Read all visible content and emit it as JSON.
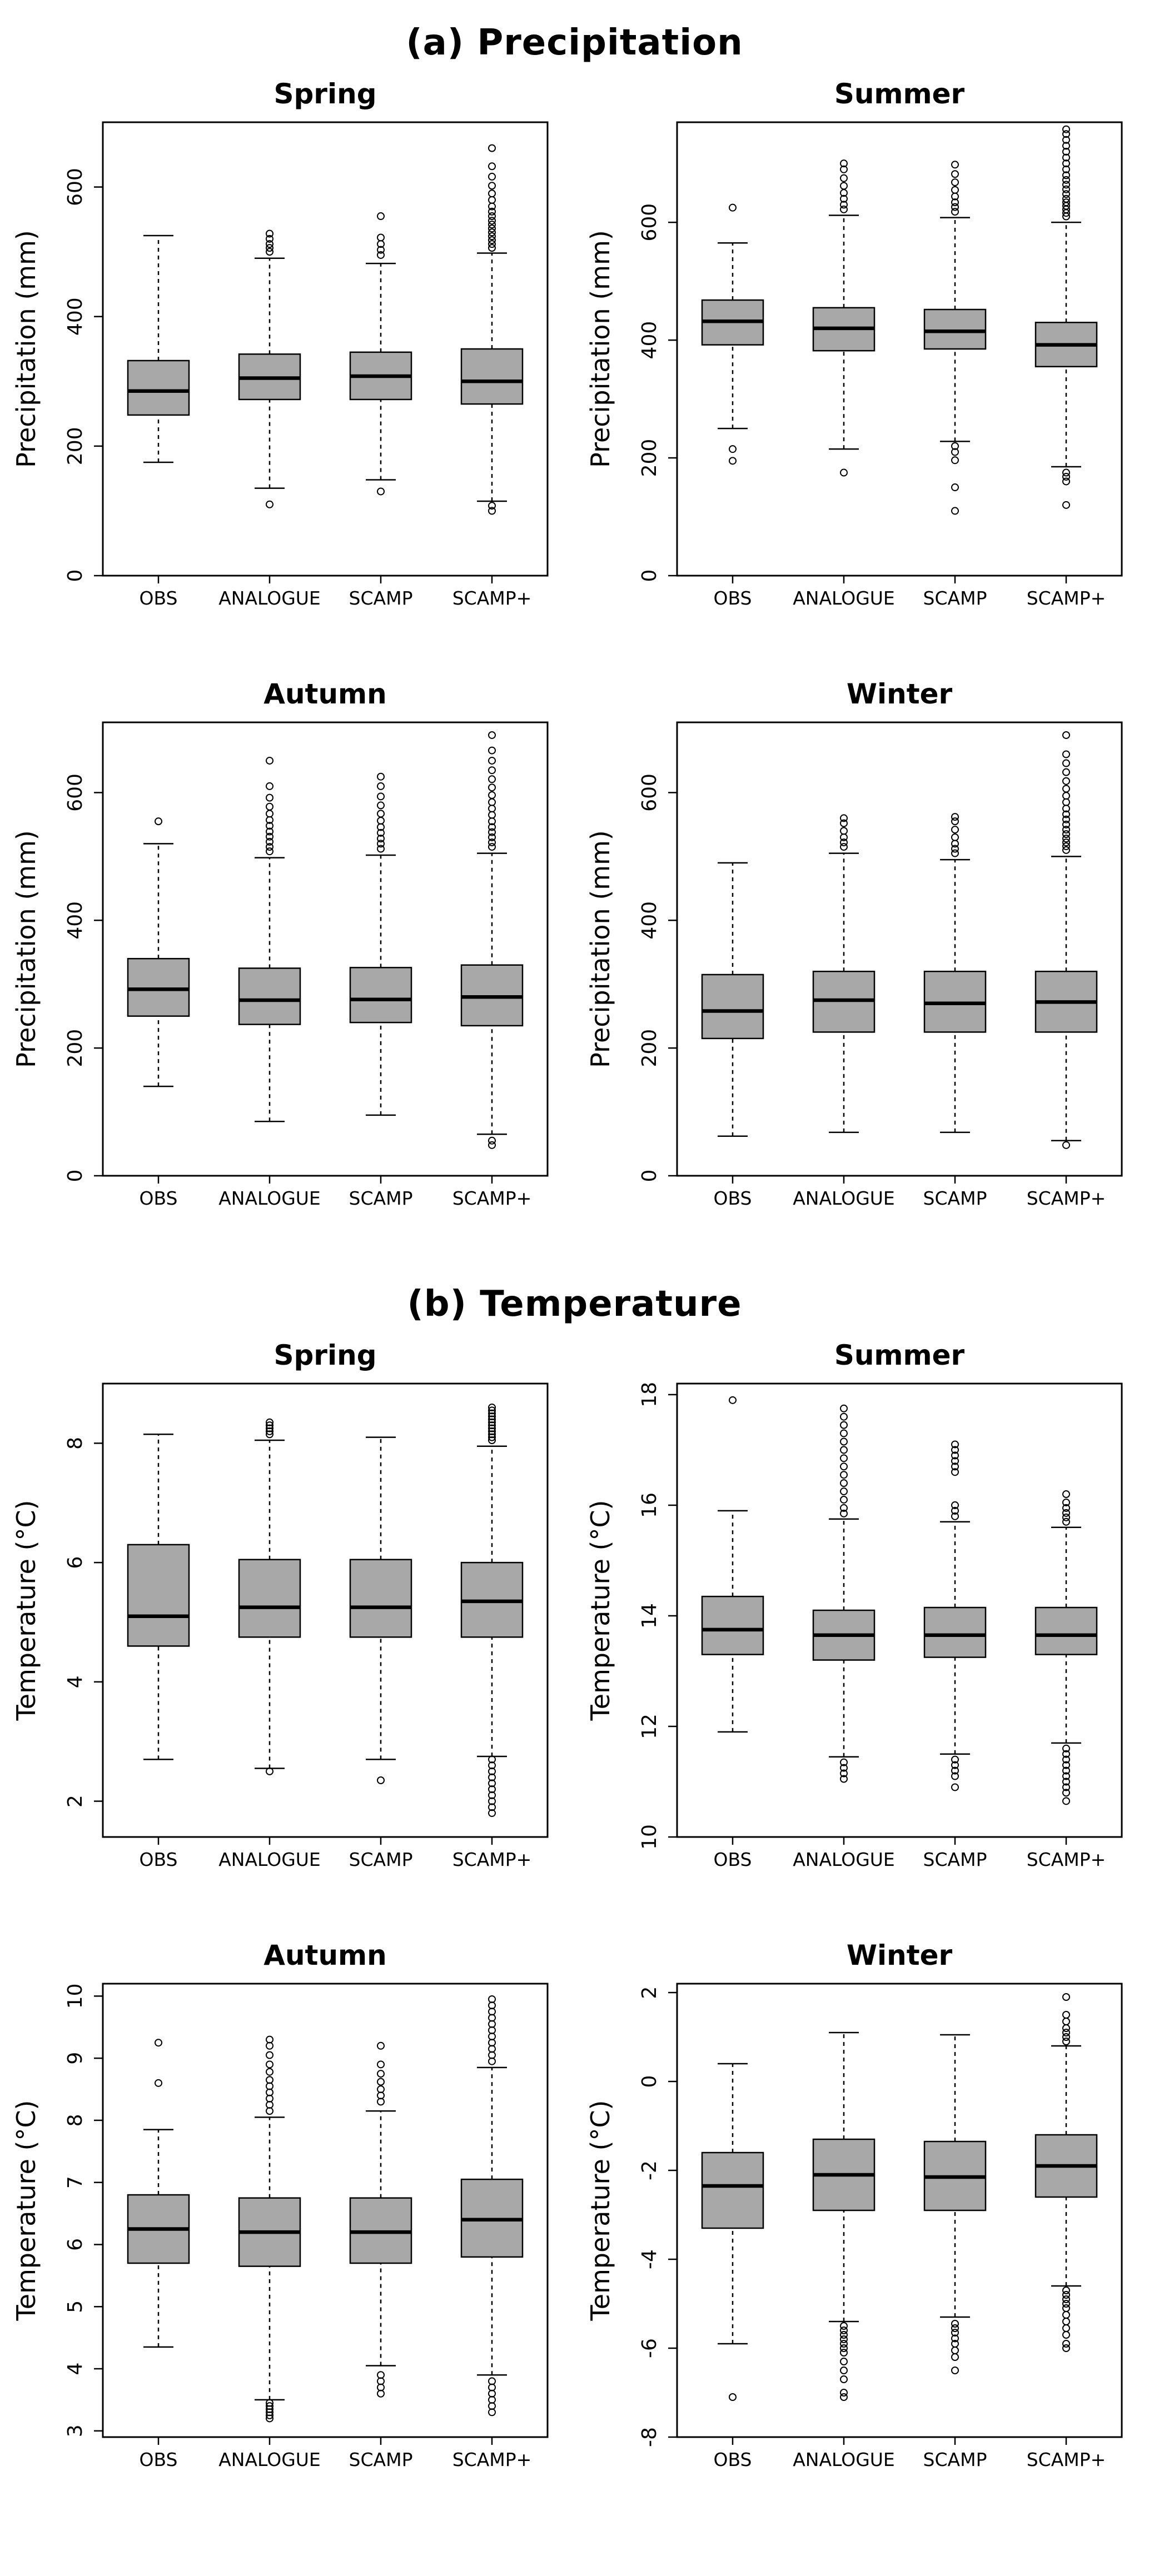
{
  "figure": {
    "section_a_title": "(a) Precipitation",
    "section_b_title": "(b) Temperature"
  },
  "style": {
    "box_fill": "#a8a8a8",
    "line_color": "#000000",
    "background": "#ffffff"
  },
  "categories": [
    "OBS",
    "ANALOGUE",
    "SCAMP",
    "SCAMP+"
  ],
  "chart_data": [
    {
      "type": "boxplot",
      "section": "a",
      "title": "Spring",
      "ylabel": "Precipitation (mm)",
      "ylim": [
        0,
        700
      ],
      "yticks": [
        0,
        200,
        400,
        600
      ],
      "categories": [
        "OBS",
        "ANALOGUE",
        "SCAMP",
        "SCAMP+"
      ],
      "series": [
        {
          "name": "OBS",
          "whisker_low": 175,
          "q1": 248,
          "median": 285,
          "q3": 332,
          "whisker_high": 525,
          "outliers": []
        },
        {
          "name": "ANALOGUE",
          "whisker_low": 135,
          "q1": 272,
          "median": 305,
          "q3": 342,
          "whisker_high": 490,
          "outliers": [
            500,
            506,
            512,
            520,
            528,
            110
          ]
        },
        {
          "name": "SCAMP",
          "whisker_low": 148,
          "q1": 272,
          "median": 308,
          "q3": 345,
          "whisker_high": 482,
          "outliers": [
            495,
            503,
            512,
            522,
            555,
            130
          ]
        },
        {
          "name": "SCAMP+",
          "whisker_low": 115,
          "q1": 265,
          "median": 300,
          "q3": 350,
          "whisker_high": 498,
          "outliers": [
            506,
            512,
            518,
            524,
            530,
            536,
            542,
            548,
            555,
            562,
            570,
            580,
            590,
            602,
            616,
            632,
            660,
            108,
            100
          ]
        }
      ]
    },
    {
      "type": "boxplot",
      "section": "a",
      "title": "Summer",
      "ylabel": "Precipitation (mm)",
      "ylim": [
        0,
        770
      ],
      "yticks": [
        0,
        200,
        400,
        600
      ],
      "categories": [
        "OBS",
        "ANALOGUE",
        "SCAMP",
        "SCAMP+"
      ],
      "series": [
        {
          "name": "OBS",
          "whisker_low": 250,
          "q1": 392,
          "median": 432,
          "q3": 468,
          "whisker_high": 565,
          "outliers": [
            625,
            215,
            195
          ]
        },
        {
          "name": "ANALOGUE",
          "whisker_low": 215,
          "q1": 382,
          "median": 420,
          "q3": 455,
          "whisker_high": 612,
          "outliers": [
            622,
            630,
            640,
            650,
            662,
            675,
            690,
            700,
            175
          ]
        },
        {
          "name": "SCAMP",
          "whisker_low": 228,
          "q1": 385,
          "median": 415,
          "q3": 452,
          "whisker_high": 608,
          "outliers": [
            618,
            626,
            634,
            644,
            655,
            668,
            682,
            698,
            220,
            210,
            196,
            150,
            110
          ]
        },
        {
          "name": "SCAMP+",
          "whisker_low": 185,
          "q1": 355,
          "median": 392,
          "q3": 430,
          "whisker_high": 600,
          "outliers": [
            610,
            616,
            622,
            628,
            634,
            640,
            648,
            656,
            664,
            672,
            680,
            690,
            700,
            710,
            720,
            730,
            740,
            750,
            758,
            175,
            168,
            160,
            120
          ]
        }
      ]
    },
    {
      "type": "boxplot",
      "section": "a",
      "title": "Autumn",
      "ylabel": "Precipitation (mm)",
      "ylim": [
        0,
        710
      ],
      "yticks": [
        0,
        200,
        400,
        600
      ],
      "categories": [
        "OBS",
        "ANALOGUE",
        "SCAMP",
        "SCAMP+"
      ],
      "series": [
        {
          "name": "OBS",
          "whisker_low": 140,
          "q1": 250,
          "median": 292,
          "q3": 340,
          "whisker_high": 520,
          "outliers": [
            555
          ]
        },
        {
          "name": "ANALOGUE",
          "whisker_low": 85,
          "q1": 237,
          "median": 275,
          "q3": 325,
          "whisker_high": 498,
          "outliers": [
            508,
            515,
            523,
            531,
            539,
            548,
            557,
            567,
            578,
            592,
            610,
            650
          ]
        },
        {
          "name": "SCAMP",
          "whisker_low": 95,
          "q1": 240,
          "median": 276,
          "q3": 326,
          "whisker_high": 502,
          "outliers": [
            512,
            520,
            528,
            537,
            546,
            556,
            567,
            580,
            594,
            610,
            625
          ]
        },
        {
          "name": "SCAMP+",
          "whisker_low": 65,
          "q1": 235,
          "median": 280,
          "q3": 330,
          "whisker_high": 505,
          "outliers": [
            515,
            522,
            530,
            538,
            546,
            555,
            565,
            575,
            585,
            596,
            608,
            621,
            635,
            650,
            666,
            690,
            55,
            48
          ]
        }
      ]
    },
    {
      "type": "boxplot",
      "section": "a",
      "title": "Winter",
      "ylabel": "Precipitation (mm)",
      "ylim": [
        0,
        710
      ],
      "yticks": [
        0,
        200,
        400,
        600
      ],
      "categories": [
        "OBS",
        "ANALOGUE",
        "SCAMP",
        "SCAMP+"
      ],
      "series": [
        {
          "name": "OBS",
          "whisker_low": 62,
          "q1": 215,
          "median": 258,
          "q3": 315,
          "whisker_high": 490,
          "outliers": []
        },
        {
          "name": "ANALOGUE",
          "whisker_low": 68,
          "q1": 225,
          "median": 275,
          "q3": 320,
          "whisker_high": 505,
          "outliers": [
            515,
            522,
            530,
            540,
            552,
            560
          ]
        },
        {
          "name": "SCAMP",
          "whisker_low": 68,
          "q1": 225,
          "median": 270,
          "q3": 320,
          "whisker_high": 495,
          "outliers": [
            505,
            512,
            520,
            530,
            542,
            555,
            562
          ]
        },
        {
          "name": "SCAMP+",
          "whisker_low": 55,
          "q1": 225,
          "median": 272,
          "q3": 320,
          "whisker_high": 500,
          "outliers": [
            510,
            516,
            522,
            528,
            535,
            542,
            550,
            558,
            566,
            575,
            585,
            595,
            606,
            618,
            632,
            646,
            660,
            690,
            48
          ]
        }
      ]
    },
    {
      "type": "boxplot",
      "section": "b",
      "title": "Spring",
      "ylabel": "Temperature (°C)",
      "ylim": [
        1.4,
        9.0
      ],
      "yticks": [
        2,
        4,
        6,
        8
      ],
      "categories": [
        "OBS",
        "ANALOGUE",
        "SCAMP",
        "SCAMP+"
      ],
      "series": [
        {
          "name": "OBS",
          "whisker_low": 2.7,
          "q1": 4.6,
          "median": 5.1,
          "q3": 6.3,
          "whisker_high": 8.15,
          "outliers": []
        },
        {
          "name": "ANALOGUE",
          "whisker_low": 2.55,
          "q1": 4.75,
          "median": 5.25,
          "q3": 6.05,
          "whisker_high": 8.05,
          "outliers": [
            8.15,
            8.2,
            8.25,
            8.3,
            8.35,
            2.5
          ]
        },
        {
          "name": "SCAMP",
          "whisker_low": 2.7,
          "q1": 4.75,
          "median": 5.25,
          "q3": 6.05,
          "whisker_high": 8.1,
          "outliers": [
            2.35
          ]
        },
        {
          "name": "SCAMP+",
          "whisker_low": 2.75,
          "q1": 4.75,
          "median": 5.35,
          "q3": 6.0,
          "whisker_high": 7.95,
          "outliers": [
            8.05,
            8.1,
            8.15,
            8.2,
            8.25,
            8.3,
            8.35,
            8.4,
            8.45,
            8.5,
            8.55,
            8.6,
            2.7,
            2.6,
            2.5,
            2.4,
            2.3,
            2.2,
            2.1,
            2.0,
            1.9,
            1.8
          ]
        }
      ]
    },
    {
      "type": "boxplot",
      "section": "b",
      "title": "Summer",
      "ylabel": "Temperature (°C)",
      "ylim": [
        10,
        18.2
      ],
      "yticks": [
        10,
        12,
        14,
        16,
        18
      ],
      "categories": [
        "OBS",
        "ANALOGUE",
        "SCAMP",
        "SCAMP+"
      ],
      "series": [
        {
          "name": "OBS",
          "whisker_low": 11.9,
          "q1": 13.3,
          "median": 13.75,
          "q3": 14.35,
          "whisker_high": 15.9,
          "outliers": [
            17.9
          ]
        },
        {
          "name": "ANALOGUE",
          "whisker_low": 11.45,
          "q1": 13.2,
          "median": 13.65,
          "q3": 14.1,
          "whisker_high": 15.75,
          "outliers": [
            15.85,
            15.95,
            16.1,
            16.25,
            16.4,
            16.55,
            16.7,
            16.85,
            17.0,
            17.15,
            17.3,
            17.45,
            17.6,
            17.75,
            11.35,
            11.25,
            11.15,
            11.05
          ]
        },
        {
          "name": "SCAMP",
          "whisker_low": 11.5,
          "q1": 13.25,
          "median": 13.65,
          "q3": 14.15,
          "whisker_high": 15.7,
          "outliers": [
            15.8,
            15.9,
            16.0,
            16.6,
            16.7,
            16.8,
            16.9,
            17.0,
            17.1,
            11.4,
            11.3,
            11.2,
            11.1,
            10.9
          ]
        },
        {
          "name": "SCAMP+",
          "whisker_low": 11.7,
          "q1": 13.3,
          "median": 13.65,
          "q3": 14.15,
          "whisker_high": 15.6,
          "outliers": [
            15.7,
            15.78,
            15.86,
            15.95,
            16.05,
            16.2,
            11.6,
            11.5,
            11.4,
            11.3,
            11.2,
            11.1,
            11.0,
            10.9,
            10.8,
            10.65
          ]
        }
      ]
    },
    {
      "type": "boxplot",
      "section": "b",
      "title": "Autumn",
      "ylabel": "Temperature (°C)",
      "ylim": [
        2.9,
        10.2
      ],
      "yticks": [
        3,
        4,
        5,
        6,
        7,
        8,
        9,
        10
      ],
      "categories": [
        "OBS",
        "ANALOGUE",
        "SCAMP",
        "SCAMP+"
      ],
      "series": [
        {
          "name": "OBS",
          "whisker_low": 4.35,
          "q1": 5.7,
          "median": 6.25,
          "q3": 6.8,
          "whisker_high": 7.85,
          "outliers": [
            8.6,
            9.25
          ]
        },
        {
          "name": "ANALOGUE",
          "whisker_low": 3.5,
          "q1": 5.65,
          "median": 6.2,
          "q3": 6.75,
          "whisker_high": 8.05,
          "outliers": [
            8.15,
            8.25,
            8.35,
            8.45,
            8.55,
            8.65,
            8.78,
            8.9,
            9.05,
            9.2,
            9.3,
            3.45,
            3.4,
            3.35,
            3.3,
            3.25,
            3.2
          ]
        },
        {
          "name": "SCAMP",
          "whisker_low": 4.05,
          "q1": 5.7,
          "median": 6.2,
          "q3": 6.75,
          "whisker_high": 8.15,
          "outliers": [
            8.3,
            8.4,
            8.5,
            8.62,
            8.75,
            8.9,
            9.2,
            3.9,
            3.8,
            3.7,
            3.6
          ]
        },
        {
          "name": "SCAMP+",
          "whisker_low": 3.9,
          "q1": 5.8,
          "median": 6.4,
          "q3": 7.05,
          "whisker_high": 8.85,
          "outliers": [
            8.95,
            9.05,
            9.15,
            9.25,
            9.35,
            9.45,
            9.55,
            9.65,
            9.75,
            9.85,
            9.95,
            3.8,
            3.7,
            3.6,
            3.5,
            3.4,
            3.3
          ]
        }
      ]
    },
    {
      "type": "boxplot",
      "section": "b",
      "title": "Winter",
      "ylabel": "Temperature (°C)",
      "ylim": [
        -8,
        2.2
      ],
      "yticks": [
        -8,
        -6,
        -4,
        -2,
        0,
        2
      ],
      "categories": [
        "OBS",
        "ANALOGUE",
        "SCAMP",
        "SCAMP+"
      ],
      "series": [
        {
          "name": "OBS",
          "whisker_low": -5.9,
          "q1": -3.3,
          "median": -2.35,
          "q3": -1.6,
          "whisker_high": 0.4,
          "outliers": [
            -7.1
          ]
        },
        {
          "name": "ANALOGUE",
          "whisker_low": -5.4,
          "q1": -2.9,
          "median": -2.1,
          "q3": -1.3,
          "whisker_high": 1.1,
          "outliers": [
            -5.5,
            -5.6,
            -5.7,
            -5.8,
            -5.9,
            -6.0,
            -6.1,
            -6.3,
            -6.5,
            -6.7,
            -7.0,
            -7.1
          ]
        },
        {
          "name": "SCAMP",
          "whisker_low": -5.3,
          "q1": -2.9,
          "median": -2.15,
          "q3": -1.35,
          "whisker_high": 1.05,
          "outliers": [
            -5.45,
            -5.55,
            -5.65,
            -5.78,
            -5.9,
            -6.05,
            -6.2,
            -6.5
          ]
        },
        {
          "name": "SCAMP+",
          "whisker_low": -4.6,
          "q1": -2.6,
          "median": -1.9,
          "q3": -1.2,
          "whisker_high": 0.8,
          "outliers": [
            0.9,
            1.0,
            1.1,
            1.2,
            1.35,
            1.5,
            1.9,
            -4.7,
            -4.8,
            -4.9,
            -5.0,
            -5.1,
            -5.25,
            -5.4,
            -5.55,
            -5.7,
            -5.9,
            -6.0
          ]
        }
      ]
    }
  ]
}
